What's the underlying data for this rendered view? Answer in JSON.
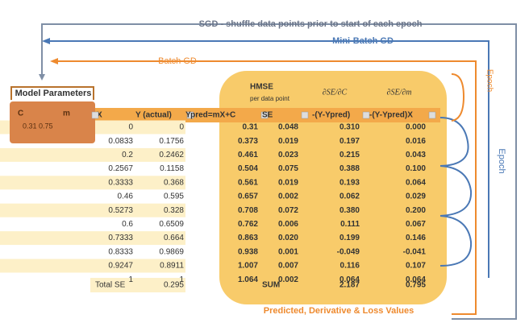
{
  "annotations": {
    "sgd": "SGD - shuffle data points prior to start of  each epoch",
    "minibatch": "Mini-Batch GD",
    "batch": "Batch GD",
    "epoch_top": "Epoch",
    "epoch_right": "Epoch",
    "model_params": "Model Parameters",
    "bottom": "Predicted, Derivative & Loss Values"
  },
  "params": {
    "headers": [
      "C",
      "m"
    ],
    "values": [
      "0.31",
      "0.75"
    ]
  },
  "derivatives": {
    "hmse": "HMSE",
    "per_point": "per data point",
    "dc": "∂SE/∂C",
    "dm": "∂SE/∂m"
  },
  "table": {
    "headers": [
      "X",
      "Y (actual)",
      "Ypred=mX+C",
      "SE",
      "-(Y-Ypred)",
      "-(Y-Ypred)X"
    ],
    "rows": [
      [
        "0",
        "0",
        "0.31",
        "0.048",
        "0.310",
        "0.000"
      ],
      [
        "0.0833",
        "0.1756",
        "0.373",
        "0.019",
        "0.197",
        "0.016"
      ],
      [
        "0.2",
        "0.2462",
        "0.461",
        "0.023",
        "0.215",
        "0.043"
      ],
      [
        "0.2567",
        "0.1158",
        "0.504",
        "0.075",
        "0.388",
        "0.100"
      ],
      [
        "0.3333",
        "0.368",
        "0.561",
        "0.019",
        "0.193",
        "0.064"
      ],
      [
        "0.46",
        "0.595",
        "0.657",
        "0.002",
        "0.062",
        "0.029"
      ],
      [
        "0.5273",
        "0.328",
        "0.708",
        "0.072",
        "0.380",
        "0.200"
      ],
      [
        "0.6",
        "0.6509",
        "0.762",
        "0.006",
        "0.111",
        "0.067"
      ],
      [
        "0.7333",
        "0.664",
        "0.863",
        "0.020",
        "0.199",
        "0.146"
      ],
      [
        "0.8333",
        "0.9869",
        "0.938",
        "0.001",
        "-0.049",
        "-0.041"
      ],
      [
        "0.9247",
        "0.8911",
        "1.007",
        "0.007",
        "0.116",
        "0.107"
      ],
      [
        "1",
        "1",
        "1.064",
        "0.002",
        "0.064",
        "0.064"
      ]
    ],
    "total_label": "Total SE",
    "total_value": "0.295",
    "sum_label": "SUM",
    "sum_values": [
      "2.187",
      "0.795"
    ]
  }
}
